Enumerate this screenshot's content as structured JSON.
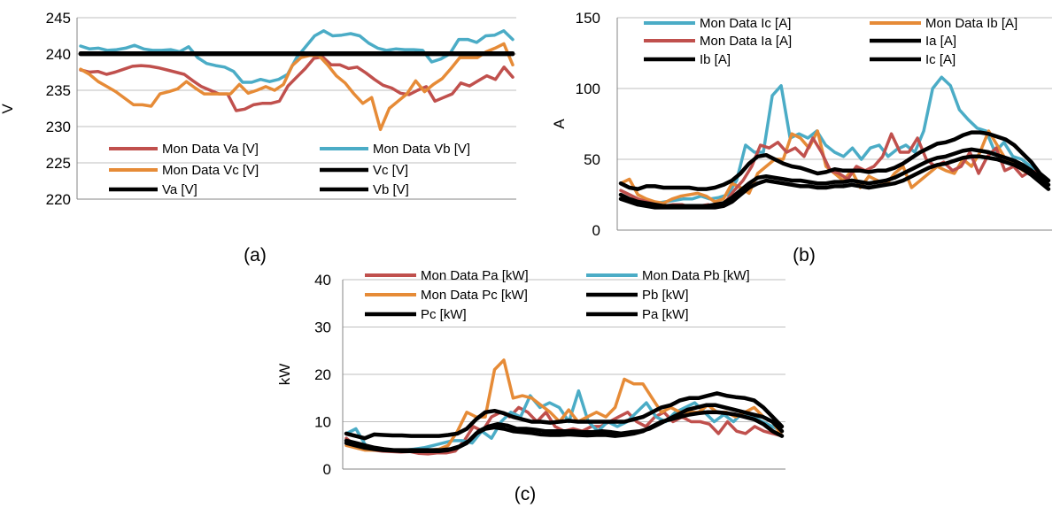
{
  "chart_data": [
    {
      "id": "a",
      "type": "line",
      "panel_label": "(a)",
      "ylabel": "V",
      "ylim": [
        220,
        245
      ],
      "yticks": [
        220,
        225,
        230,
        235,
        240,
        245
      ],
      "grid": "horizontal",
      "legend_placement": "bottom",
      "legend_columns": 2,
      "series": [
        {
          "name": "Mon Data Va [V]",
          "color": "#c0504d",
          "values": [
            237.8,
            237.5,
            237.6,
            237.2,
            237.5,
            237.9,
            238.3,
            238.4,
            238.3,
            238.1,
            237.8,
            237.5,
            237.2,
            236.3,
            235.5,
            235,
            234.5,
            234.5,
            232.2,
            232.4,
            233,
            233.2,
            233.2,
            233.5,
            235.6,
            236.8,
            238,
            239.4,
            239.6,
            238.5,
            238.5,
            238,
            238.2,
            237.4,
            236.5,
            235.7,
            235.3,
            234.6,
            234.4,
            235,
            235.5,
            233.5,
            234,
            234.5,
            236,
            235.6,
            236.3,
            237,
            236.5,
            238.2,
            236.8
          ]
        },
        {
          "name": "Mon Data Vb [V]",
          "color": "#4bacc6",
          "values": [
            241.1,
            240.7,
            240.8,
            240.5,
            240.6,
            240.8,
            241.2,
            240.7,
            240.5,
            240.5,
            240.6,
            240.3,
            241,
            239.5,
            238.7,
            238.4,
            238.2,
            237.6,
            236.1,
            236.1,
            236.5,
            236.2,
            236.5,
            237.2,
            239.5,
            241,
            242.5,
            243.2,
            242.5,
            242.6,
            242.8,
            242.5,
            241.5,
            240.8,
            240.5,
            240.7,
            240.6,
            240.6,
            240.5,
            238.9,
            239.3,
            240,
            242,
            242,
            241.6,
            242.5,
            242.6,
            243.2,
            242
          ]
        },
        {
          "name": "Mon Data Vc [V]",
          "color": "#e68b37",
          "values": [
            237.9,
            237.2,
            236.2,
            235.5,
            234.8,
            233.9,
            233,
            233,
            232.8,
            234.5,
            234.8,
            235.2,
            236.2,
            235.3,
            234.5,
            234.5,
            234.5,
            234.5,
            235.8,
            234.6,
            235,
            235.5,
            235,
            235.8,
            238.4,
            239.5,
            239.8,
            239.8,
            238.5,
            237,
            236,
            234.5,
            233.2,
            234,
            229.6,
            232.5,
            233.5,
            234.5,
            236.3,
            234.8,
            235.8,
            236.6,
            238,
            239.5,
            239.5,
            239.5,
            240.3,
            240.8,
            241.4,
            238.5
          ]
        },
        {
          "name": "Vc [V]",
          "color": "#000000",
          "values": [
            240,
            240,
            240,
            240,
            240,
            240,
            240,
            240,
            240,
            240,
            240,
            240,
            240,
            240,
            240,
            240,
            240,
            240,
            240,
            240,
            240,
            240,
            240,
            240,
            240,
            240,
            240,
            240,
            240,
            240,
            240,
            240,
            240,
            240,
            240,
            240,
            240,
            240,
            240,
            240,
            240,
            240,
            240,
            240,
            240,
            240,
            240,
            240,
            240,
            240
          ]
        },
        {
          "name": "Va [V]",
          "color": "#000000",
          "values": [
            240,
            240,
            240,
            240,
            240,
            240,
            240,
            240,
            240,
            240,
            240,
            240,
            240,
            240,
            240,
            240,
            240,
            240,
            240,
            240,
            240,
            240,
            240,
            240,
            240,
            240,
            240,
            240,
            240,
            240,
            240,
            240,
            240,
            240,
            240,
            240,
            240,
            240,
            240,
            240,
            240,
            240,
            240,
            240,
            240,
            240,
            240,
            240,
            240,
            240
          ]
        },
        {
          "name": "Vb [V]",
          "color": "#000000",
          "values": [
            240.1,
            240.1,
            240.1,
            240.1,
            240.1,
            240.1,
            240.1,
            240.1,
            240.1,
            240.1,
            240.1,
            240.1,
            240.1,
            240.1,
            240.1,
            240.1,
            240.1,
            240.1,
            240.1,
            240.1,
            240.1,
            240.1,
            240.1,
            240.1,
            240.1,
            240.1,
            240.1,
            240.1,
            240.1,
            240.1,
            240.1,
            240.1,
            240.1,
            240.1,
            240.1,
            240.1,
            240.1,
            240.1,
            240.1,
            240.1,
            240.1,
            240.1,
            240.1,
            240.1,
            240.1,
            240.1,
            240.1,
            240.1,
            240.1,
            240.1
          ]
        }
      ]
    },
    {
      "id": "b",
      "type": "line",
      "panel_label": "(b)",
      "ylabel": "A",
      "ylim": [
        0,
        150
      ],
      "yticks": [
        0,
        50,
        100,
        150
      ],
      "grid": "horizontal",
      "legend_placement": "top",
      "legend_columns": 2,
      "series": [
        {
          "name": "Mon Data Ic [A]",
          "color": "#4bacc6",
          "values": [
            25,
            22,
            21,
            20,
            19,
            20,
            21,
            22,
            22,
            24,
            22,
            23,
            25,
            35,
            60,
            55,
            55,
            95,
            102,
            65,
            68,
            65,
            70,
            60,
            55,
            52,
            58,
            50,
            58,
            60,
            52,
            57,
            60,
            55,
            70,
            100,
            108,
            102,
            85,
            78,
            72,
            70,
            55,
            62,
            52,
            50,
            45,
            40,
            32
          ]
        },
        {
          "name": "Mon Data Ib [A]",
          "color": "#e68b37",
          "values": [
            33,
            36,
            25,
            22,
            20,
            19,
            22,
            24,
            25,
            26,
            24,
            20,
            22,
            33,
            30,
            26,
            40,
            45,
            50,
            50,
            68,
            65,
            58,
            70,
            45,
            40,
            35,
            42,
            30,
            38,
            35,
            32,
            40,
            45,
            30,
            35,
            40,
            45,
            42,
            40,
            50,
            45,
            55,
            70,
            60,
            50,
            48,
            42,
            40,
            38,
            32
          ]
        },
        {
          "name": "Mon Data Ia [A]",
          "color": "#c0504d",
          "values": [
            28,
            25,
            22,
            20,
            18,
            17,
            18,
            18,
            16,
            17,
            18,
            16,
            20,
            28,
            35,
            45,
            60,
            58,
            62,
            55,
            58,
            52,
            65,
            55,
            42,
            40,
            36,
            45,
            42,
            45,
            52,
            68,
            55,
            55,
            65,
            50,
            45,
            48,
            42,
            45,
            55,
            40,
            52,
            58,
            42,
            45,
            38,
            42,
            40,
            35
          ]
        },
        {
          "name": "Ia [A]",
          "color": "#000000",
          "values": [
            33,
            30,
            29,
            31,
            31,
            30,
            30,
            30,
            30,
            29,
            29,
            30,
            32,
            35,
            40,
            47,
            52,
            53,
            50,
            47,
            45,
            44,
            42,
            40,
            41,
            43,
            42,
            42,
            42,
            41,
            42,
            42,
            44,
            47,
            51,
            55,
            58,
            61,
            62,
            64,
            67,
            69,
            69,
            68,
            66,
            64,
            60,
            54,
            48,
            40,
            35
          ]
        },
        {
          "name": "Ib [A]",
          "color": "#000000",
          "values": [
            25,
            22,
            20,
            19,
            18,
            17,
            17,
            17,
            17,
            17,
            17,
            18,
            19,
            23,
            28,
            33,
            37,
            38,
            37,
            36,
            35,
            35,
            34,
            33,
            33,
            34,
            34,
            35,
            34,
            33,
            34,
            35,
            37,
            40,
            43,
            46,
            49,
            51,
            52,
            54,
            56,
            57,
            56,
            55,
            53,
            51,
            49,
            46,
            42,
            37,
            32
          ]
        },
        {
          "name": "Ic [A]",
          "color": "#000000",
          "values": [
            22,
            20,
            18,
            17,
            16,
            16,
            16,
            16,
            16,
            16,
            16,
            16,
            17,
            20,
            25,
            30,
            33,
            35,
            34,
            33,
            32,
            31,
            31,
            30,
            30,
            31,
            31,
            32,
            31,
            30,
            31,
            32,
            33,
            35,
            38,
            41,
            44,
            46,
            47,
            49,
            51,
            52,
            52,
            51,
            50,
            48,
            46,
            43,
            39,
            34,
            29
          ]
        }
      ]
    },
    {
      "id": "c",
      "type": "line",
      "panel_label": "(c)",
      "ylabel": "kW",
      "ylim": [
        0,
        40
      ],
      "yticks": [
        0,
        10,
        20,
        30,
        40
      ],
      "grid": "horizontal",
      "legend_placement": "top",
      "legend_columns": 2,
      "series": [
        {
          "name": "Mon Data Pa [kW]",
          "color": "#c0504d",
          "values": [
            6.5,
            5,
            4.5,
            4,
            3.8,
            3.7,
            3.6,
            3.7,
            3.3,
            3.2,
            3.4,
            3.4,
            3.8,
            6,
            9,
            8,
            11,
            12,
            11,
            13,
            12,
            10,
            12,
            9,
            8,
            8.5,
            8,
            9,
            9,
            10,
            11,
            12,
            10,
            9,
            11,
            12,
            10,
            11,
            10,
            10,
            9.5,
            7.5,
            10,
            8,
            7.5,
            9,
            8,
            7.5,
            7
          ]
        },
        {
          "name": "Mon Data Pb [kW]",
          "color": "#4bacc6",
          "values": [
            7.5,
            8.5,
            5,
            4.5,
            4,
            4,
            4,
            4.2,
            4.5,
            5,
            5.5,
            6,
            6,
            5.5,
            8,
            6.5,
            10,
            12,
            11,
            15.5,
            13,
            14,
            13,
            10,
            16.5,
            10,
            8,
            10,
            9,
            10,
            12,
            14,
            11,
            10,
            12,
            13,
            14,
            12,
            10,
            11.5,
            10,
            12,
            11,
            10,
            9,
            8
          ]
        },
        {
          "name": "Mon Data Pc [kW]",
          "color": "#e68b37",
          "values": [
            5,
            4.5,
            4,
            4,
            4,
            3.9,
            3.8,
            3.8,
            4,
            4,
            4.2,
            5,
            8,
            12,
            11,
            11,
            21,
            23,
            15,
            15.5,
            15,
            13.5,
            12,
            10,
            12.5,
            10,
            11,
            12,
            11,
            13,
            19,
            18,
            18,
            15,
            12,
            13,
            12,
            12,
            12,
            13.5,
            12,
            12,
            11,
            12,
            13,
            11,
            10,
            7
          ]
        },
        {
          "name": "Pb [kW]",
          "color": "#000000",
          "values": [
            7.5,
            7,
            6.5,
            7.3,
            7.2,
            7.1,
            7.1,
            7,
            7,
            7,
            7,
            7.2,
            7.5,
            8.5,
            10.5,
            12,
            12.3,
            11.8,
            11,
            10.5,
            10,
            10,
            9.8,
            10,
            10.2,
            10,
            10,
            10,
            10,
            10,
            10,
            10.5,
            11,
            12,
            13,
            13.5,
            14.5,
            15,
            15,
            15.5,
            16,
            15.5,
            15.2,
            15,
            14.5,
            13,
            11,
            9
          ]
        },
        {
          "name": "Pc [kW]",
          "color": "#000000",
          "values": [
            6,
            5.5,
            5,
            4.5,
            4.2,
            4,
            4,
            4,
            4,
            4,
            4,
            4.2,
            4.8,
            6,
            8,
            9,
            9.5,
            9.2,
            8.5,
            8.5,
            8.3,
            8,
            8,
            8,
            8,
            7.8,
            7.8,
            8,
            7.8,
            7.5,
            7.8,
            8,
            8.5,
            9.5,
            10.5,
            11.5,
            12.5,
            13,
            13.5,
            13.5,
            13,
            12.5,
            12,
            11.5,
            11,
            10,
            8
          ]
        },
        {
          "name": "Pa [kW]",
          "color": "#000000",
          "values": [
            5.5,
            5,
            4.5,
            4.2,
            4,
            3.9,
            3.8,
            3.8,
            3.8,
            3.8,
            3.8,
            4,
            4.5,
            5.5,
            7.5,
            8.5,
            8.8,
            8.5,
            8,
            7.8,
            7.6,
            7.3,
            7.2,
            7.2,
            7.3,
            7.2,
            7.1,
            7.2,
            7.2,
            7,
            7.2,
            7.5,
            8,
            9,
            10,
            10.5,
            11,
            11.5,
            11.8,
            12,
            12,
            11.8,
            11.5,
            11,
            10.5,
            9.5,
            8,
            7
          ]
        }
      ]
    }
  ]
}
